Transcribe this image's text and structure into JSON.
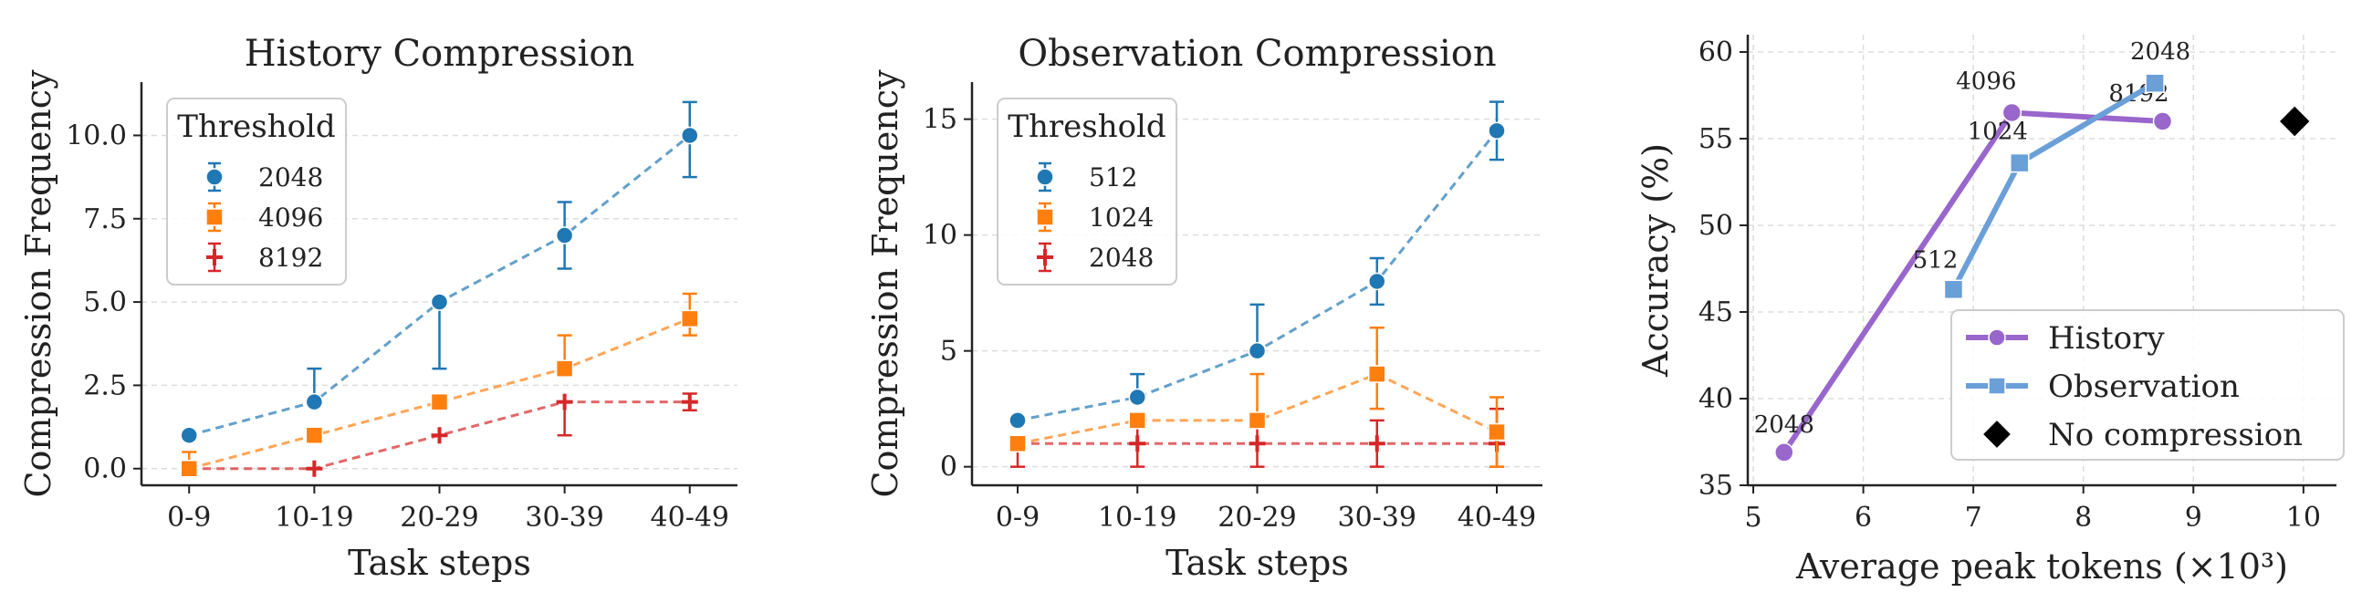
{
  "chart_data": [
    {
      "type": "line",
      "title": "History Compression",
      "xlabel": "Task steps",
      "ylabel": "Compression Frequency",
      "categories": [
        "0-9",
        "10-19",
        "20-29",
        "30-39",
        "40-49"
      ],
      "ylim": [
        -0.5,
        11.6
      ],
      "yticks": [
        "0.0",
        "2.5",
        "5.0",
        "7.5",
        "10.0"
      ],
      "grid": "y-dashed",
      "legend": {
        "title": "Threshold",
        "placement": "top-left"
      },
      "series": [
        {
          "name": "2048",
          "color": "#1f77b4",
          "marker": "circle",
          "values": [
            1,
            2,
            5,
            7,
            10
          ],
          "err_low": [
            0,
            0,
            2,
            1,
            1.25
          ],
          "err_high": [
            0,
            1,
            0,
            1,
            1
          ]
        },
        {
          "name": "4096",
          "color": "#ff7f0e",
          "marker": "square",
          "values": [
            0,
            1,
            2,
            3,
            4.5
          ],
          "err_low": [
            0,
            0,
            0,
            0,
            0.5
          ],
          "err_high": [
            0.5,
            0,
            0,
            1,
            0.75
          ]
        },
        {
          "name": "8192",
          "color": "#d62728",
          "marker": "plus",
          "values": [
            0,
            0,
            1,
            2,
            2
          ],
          "err_low": [
            0,
            0,
            0,
            1,
            0.25
          ],
          "err_high": [
            0,
            0,
            0,
            0,
            0.25
          ]
        }
      ]
    },
    {
      "type": "line",
      "title": "Observation Compression",
      "xlabel": "Task steps",
      "ylabel": "Compression Frequency",
      "categories": [
        "0-9",
        "10-19",
        "20-29",
        "30-39",
        "40-49"
      ],
      "ylim": [
        -0.8,
        16.6
      ],
      "yticks": [
        "0",
        "5",
        "10",
        "15"
      ],
      "grid": "y-dashed",
      "legend": {
        "title": "Threshold",
        "placement": "top-left"
      },
      "series": [
        {
          "name": "512",
          "color": "#1f77b4",
          "marker": "circle",
          "values": [
            2,
            3,
            5,
            8,
            14.5
          ],
          "err_low": [
            0,
            0,
            0,
            1,
            1.25
          ],
          "err_high": [
            0,
            1,
            2,
            1,
            1.25
          ]
        },
        {
          "name": "1024",
          "color": "#ff7f0e",
          "marker": "square",
          "values": [
            1,
            2,
            2,
            4,
            1.5
          ],
          "err_low": [
            0,
            0,
            0,
            1.5,
            1.5
          ],
          "err_high": [
            0,
            0,
            2,
            2,
            1.5
          ]
        },
        {
          "name": "2048",
          "color": "#d62728",
          "marker": "plus",
          "values": [
            1,
            1,
            1,
            1,
            1
          ],
          "err_low": [
            1,
            1,
            1,
            1,
            1
          ],
          "err_high": [
            0,
            1,
            1,
            1,
            1.5
          ]
        }
      ]
    },
    {
      "type": "line",
      "xlabel": "Average peak tokens (×10³)",
      "ylabel": "Accuracy (%)",
      "xlim": [
        4.95,
        10.3
      ],
      "ylim": [
        35,
        61
      ],
      "xticks": [
        5,
        6,
        7,
        8,
        9,
        10
      ],
      "yticks": [
        35,
        40,
        45,
        50,
        55,
        60
      ],
      "grid": "both-dashed",
      "legend": {
        "placement": "lower-right"
      },
      "series": [
        {
          "name": "History",
          "color": "#9966cc",
          "marker": "circle",
          "x": [
            5.28,
            7.35,
            8.72
          ],
          "y": [
            36.9,
            56.5,
            56.0
          ],
          "point_labels": [
            "2048",
            "4096",
            "8192"
          ]
        },
        {
          "name": "Observation",
          "color": "#6a9fd8",
          "marker": "square",
          "x": [
            6.82,
            7.42,
            8.65
          ],
          "y": [
            46.3,
            53.6,
            58.2
          ],
          "point_labels": [
            "512",
            "1024",
            "2048"
          ]
        },
        {
          "name": "No compression",
          "color": "#000000",
          "marker": "diamond",
          "x": [
            9.92
          ],
          "y": [
            56.0
          ]
        }
      ]
    }
  ]
}
